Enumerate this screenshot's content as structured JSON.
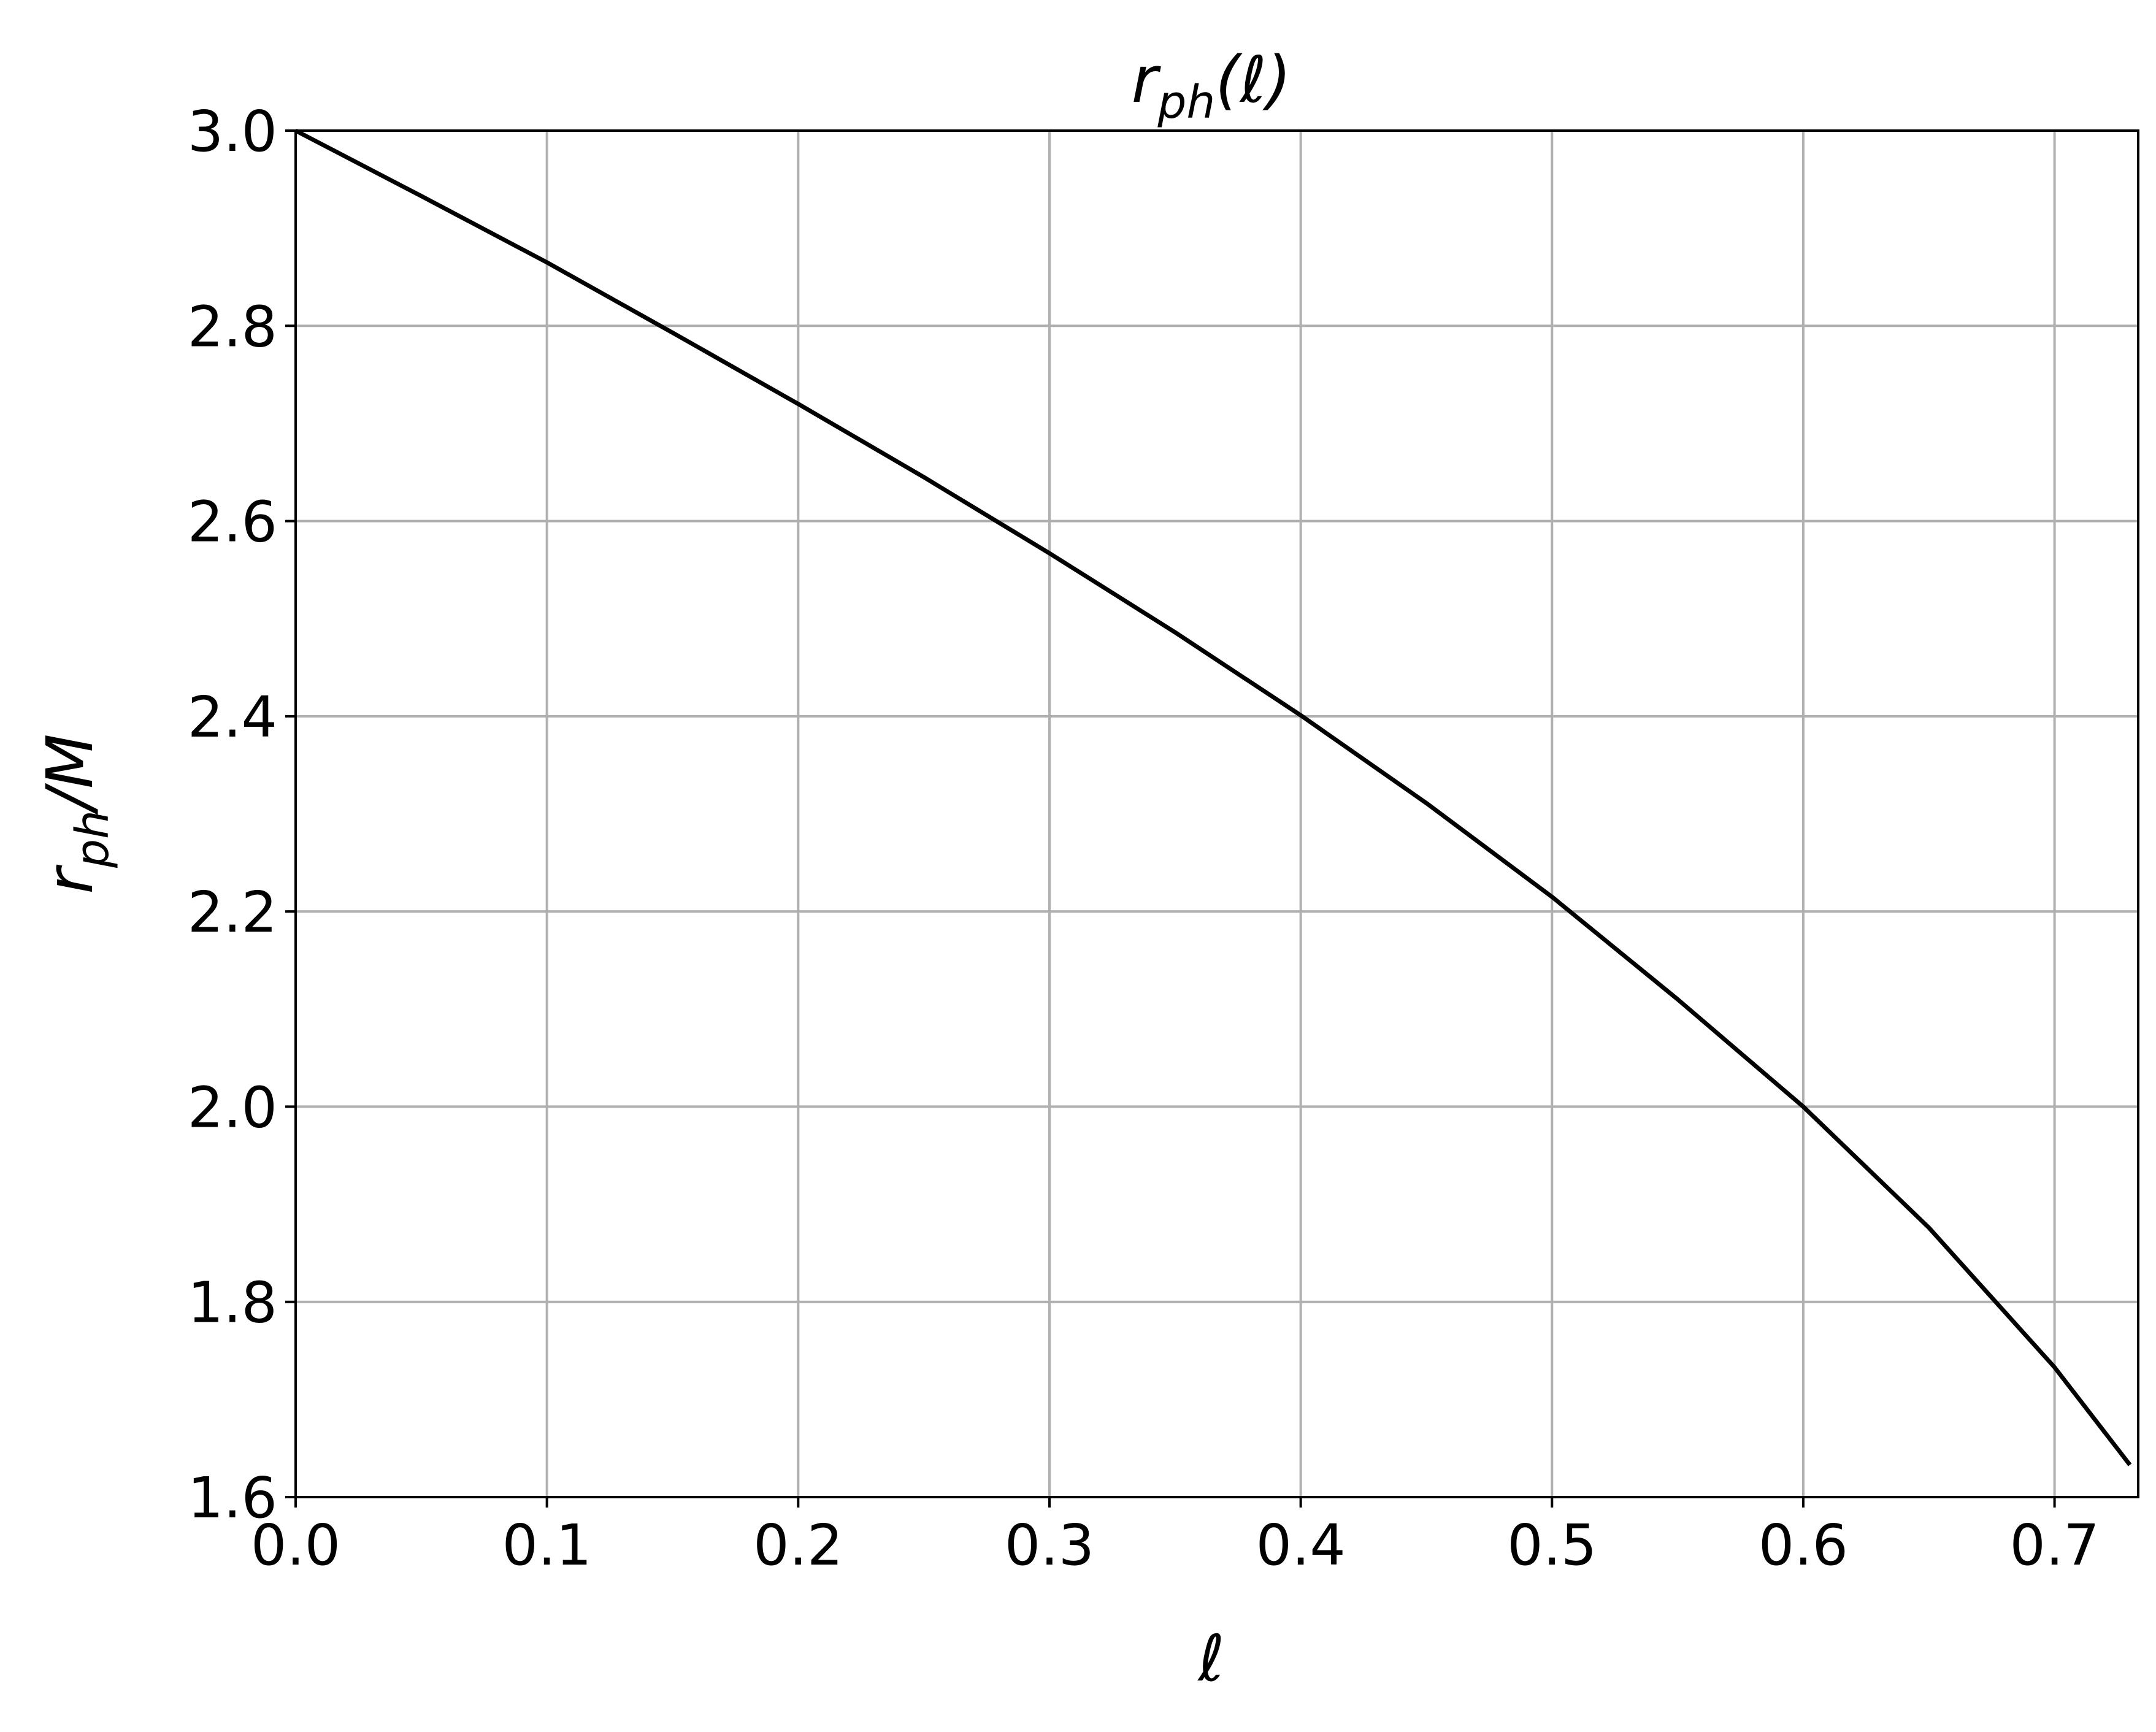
{
  "chart_data": {
    "type": "line",
    "title": "r_ph(ℓ)",
    "title_main": "r",
    "title_sub": "ph",
    "title_arg": "(ℓ)",
    "xlabel": "ℓ",
    "ylabel": "r_ph/M",
    "ylabel_main": "r",
    "ylabel_sub": "ph",
    "ylabel_rest": "/M",
    "xlim": [
      0.0,
      0.7333
    ],
    "ylim": [
      1.6,
      3.0
    ],
    "xticks": [
      0.0,
      0.1,
      0.2,
      0.3,
      0.4,
      0.5,
      0.6,
      0.7
    ],
    "xtick_labels": [
      "0.0",
      "0.1",
      "0.2",
      "0.3",
      "0.4",
      "0.5",
      "0.6",
      "0.7"
    ],
    "yticks": [
      1.6,
      1.8,
      2.0,
      2.2,
      2.4,
      2.6,
      2.8,
      3.0
    ],
    "ytick_labels": [
      "1.6",
      "1.8",
      "2.0",
      "2.2",
      "2.4",
      "2.6",
      "2.8",
      "3.0"
    ],
    "grid": true,
    "line_color": "#000000",
    "grid_color": "#b0b0b0",
    "series": [
      {
        "x": [
          0.0,
          0.05,
          0.1,
          0.15,
          0.2,
          0.25,
          0.3,
          0.35,
          0.4,
          0.45,
          0.5,
          0.55,
          0.6,
          0.65,
          0.7,
          0.73
        ],
        "y": [
          3.0,
          2.933,
          2.865,
          2.793,
          2.72,
          2.645,
          2.567,
          2.486,
          2.401,
          2.311,
          2.215,
          2.11,
          2.0,
          1.876,
          1.733,
          1.633
        ]
      }
    ]
  }
}
